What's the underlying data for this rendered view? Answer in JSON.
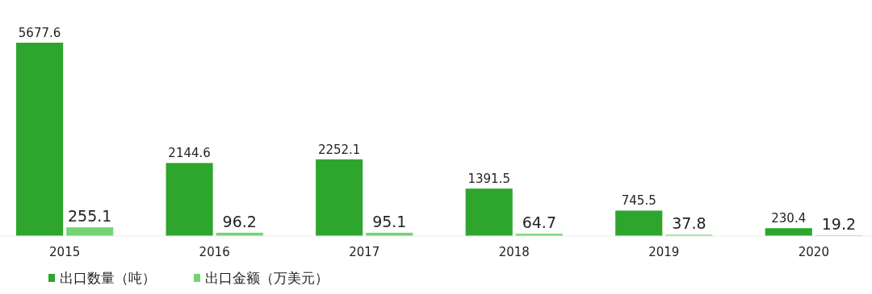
{
  "chart_data": {
    "type": "bar",
    "categories": [
      "2015",
      "2016",
      "2017",
      "2018",
      "2019",
      "2020"
    ],
    "series": [
      {
        "name": "出口数量（吨）",
        "color": "#2ea62e",
        "values": [
          5677.6,
          2144.6,
          2252.1,
          1391.5,
          745.5,
          230.4
        ]
      },
      {
        "name": "出口金额（万美元）",
        "color": "#74d474",
        "values": [
          255.1,
          96.2,
          95.1,
          64.7,
          37.8,
          19.2
        ]
      }
    ],
    "data_labels": true,
    "legend": "bottom left"
  }
}
